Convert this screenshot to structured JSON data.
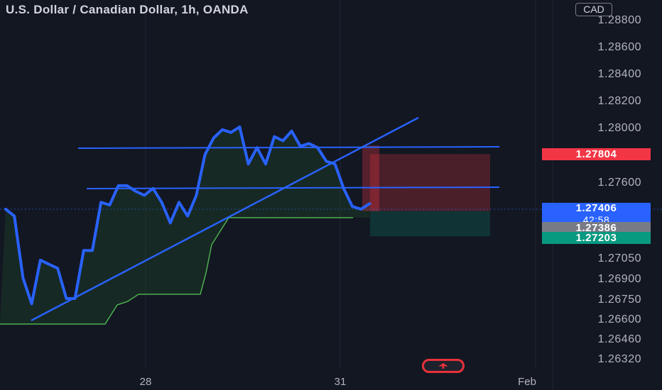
{
  "header": {
    "title": "U.S. Dollar / Canadian Dollar, 1h, OANDA",
    "currency": "CAD"
  },
  "price_labels": {
    "target": "1.27804",
    "current": "1.27406",
    "countdown": "42:58",
    "entry": "1.27386",
    "stop": "1.27203"
  },
  "colors": {
    "background": "#131722",
    "price_line": "#2962ff",
    "trendline": "#2962ff",
    "baseline_area": "#2e7d32",
    "red_label": "#f23645",
    "blue_label": "#2962ff",
    "gray_label": "#787b86",
    "green_label": "#089981",
    "risk_zone": "#f23645",
    "reward_zone": "#089981"
  },
  "chart_data": {
    "type": "line",
    "title": "U.S. Dollar / Canadian Dollar, 1h, OANDA",
    "y_axis_ticks": [
      "1.28800",
      "1.28600",
      "1.28400",
      "1.28200",
      "1.28000",
      "1.27600",
      "1.27050",
      "1.26900",
      "1.26750",
      "1.26600",
      "1.26460",
      "1.26320"
    ],
    "x_axis_ticks": [
      "28",
      "31",
      "Feb"
    ],
    "series": [
      {
        "values": [
          {
            "t": 0,
            "p": 1.274
          },
          {
            "t": 2,
            "p": 1.2735
          },
          {
            "t": 4,
            "p": 1.269
          },
          {
            "t": 6,
            "p": 1.2671
          },
          {
            "t": 8,
            "p": 1.2703
          },
          {
            "t": 10,
            "p": 1.27
          },
          {
            "t": 12,
            "p": 1.2697
          },
          {
            "t": 14,
            "p": 1.2675
          },
          {
            "t": 16,
            "p": 1.2675
          },
          {
            "t": 18,
            "p": 1.271
          },
          {
            "t": 20,
            "p": 1.271
          },
          {
            "t": 22,
            "p": 1.2745
          },
          {
            "t": 24,
            "p": 1.2743
          },
          {
            "t": 26,
            "p": 1.2757
          },
          {
            "t": 28,
            "p": 1.2757
          },
          {
            "t": 30,
            "p": 1.2753
          },
          {
            "t": 32,
            "p": 1.275
          },
          {
            "t": 34,
            "p": 1.2755
          },
          {
            "t": 36,
            "p": 1.2745
          },
          {
            "t": 38,
            "p": 1.273
          },
          {
            "t": 40,
            "p": 1.2745
          },
          {
            "t": 42,
            "p": 1.2735
          },
          {
            "t": 44,
            "p": 1.275
          },
          {
            "t": 46,
            "p": 1.278
          },
          {
            "t": 48,
            "p": 1.2792
          },
          {
            "t": 50,
            "p": 1.2798
          },
          {
            "t": 52,
            "p": 1.2796
          },
          {
            "t": 54,
            "p": 1.28
          },
          {
            "t": 56,
            "p": 1.2773
          },
          {
            "t": 58,
            "p": 1.2785
          },
          {
            "t": 60,
            "p": 1.2773
          },
          {
            "t": 62,
            "p": 1.2793
          },
          {
            "t": 64,
            "p": 1.279
          },
          {
            "t": 66,
            "p": 1.2797
          },
          {
            "t": 68,
            "p": 1.2786
          },
          {
            "t": 70,
            "p": 1.2788
          },
          {
            "t": 72,
            "p": 1.2785
          },
          {
            "t": 74,
            "p": 1.2775
          },
          {
            "t": 76,
            "p": 1.2773
          },
          {
            "t": 78,
            "p": 1.2755
          },
          {
            "t": 80,
            "p": 1.2742
          },
          {
            "t": 82,
            "p": 1.274
          },
          {
            "t": 84,
            "p": 1.2744
          }
        ]
      }
    ],
    "horizontal_levels": [
      1.27985,
      1.27565
    ],
    "trendline": {
      "from": {
        "t": 7,
        "p": 1.2657
      },
      "to": {
        "t": 92,
        "p": 1.28065
      }
    },
    "position": {
      "entry": 1.27386,
      "target": 1.27804,
      "stop": 1.27203
    },
    "grid": false,
    "legend": "none"
  }
}
